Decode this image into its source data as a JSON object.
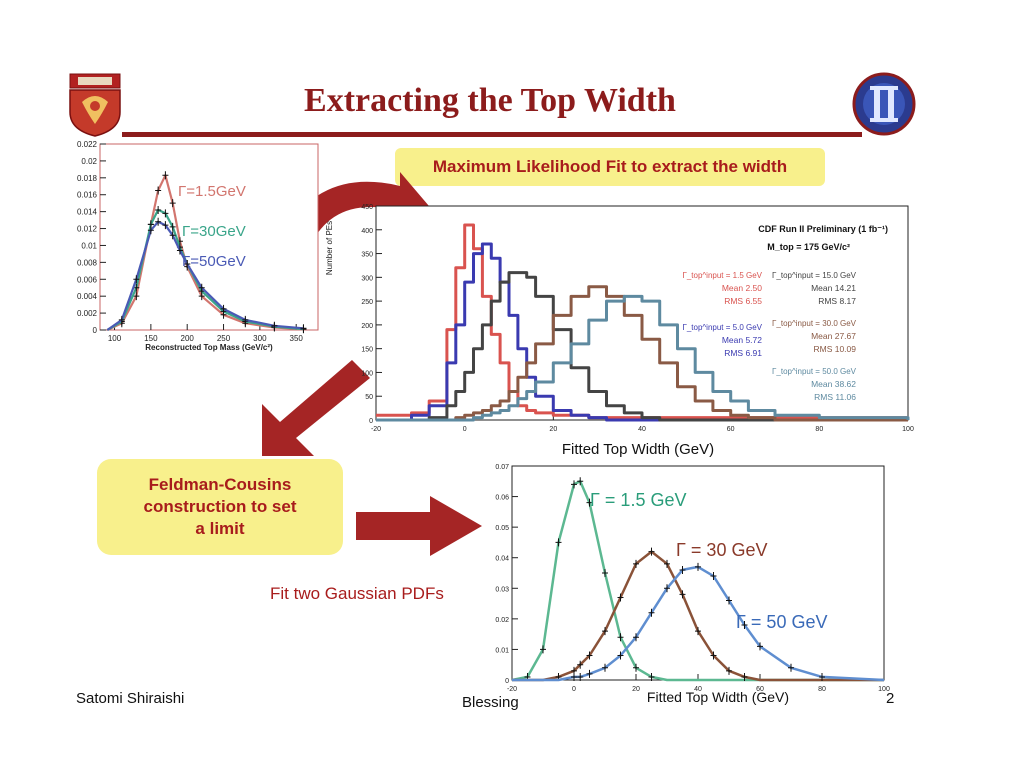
{
  "slide": {
    "title": "Extracting the Top Width",
    "callout_ml": "Maximum Likelihood Fit to extract the width",
    "callout_fc_lines": [
      "Feldman-Cousins",
      "construction to set",
      "a limit"
    ],
    "fit_note": "Fit two Gaussian PDFs",
    "author": "Satomi Shiraishi",
    "event": "Blessing",
    "page": "2",
    "logo_left": "university-crest",
    "logo_right": "cdf-logo",
    "colors": {
      "title": "#8c1c1c",
      "callout_bg": "#f8f08c",
      "callout_text": "#a81c1c",
      "arrow": "#a52525"
    }
  },
  "chart_data": [
    {
      "id": "mass",
      "type": "line",
      "xlabel": "Reconstructed Top Mass (GeV/c²)",
      "xlim": [
        80,
        380
      ],
      "ylim": [
        0,
        0.022
      ],
      "xticks": [
        100,
        150,
        200,
        250,
        300,
        350
      ],
      "yticks": [
        0,
        0.002,
        0.004,
        0.006,
        0.008,
        0.01,
        0.012,
        0.014,
        0.016,
        0.018,
        0.02,
        0.022
      ],
      "ytick_labels": [
        "0",
        "0.002",
        "0.004",
        "0.006",
        "0.008",
        "0.01",
        "0.012",
        "0.014",
        "0.016",
        "0.018",
        "0.02",
        "0.022"
      ],
      "x": [
        90,
        110,
        130,
        150,
        160,
        170,
        180,
        190,
        200,
        220,
        250,
        280,
        320,
        360
      ],
      "series": [
        {
          "name": "Γ=1.5GeV",
          "color": "#d2756e",
          "values": [
            0,
            0.0008,
            0.004,
            0.0125,
            0.0165,
            0.0183,
            0.015,
            0.0105,
            0.0075,
            0.004,
            0.0018,
            0.0008,
            0.0003,
            0.0001
          ]
        },
        {
          "name": "Γ=30GeV",
          "color": "#3aa58a",
          "values": [
            0,
            0.001,
            0.005,
            0.0125,
            0.0142,
            0.0138,
            0.0122,
            0.0098,
            0.0078,
            0.0046,
            0.0022,
            0.001,
            0.0004,
            0.0001
          ]
        },
        {
          "name": "Γ=50GeV",
          "color": "#4a5ab5",
          "values": [
            0,
            0.0012,
            0.006,
            0.0118,
            0.0128,
            0.0124,
            0.0112,
            0.0094,
            0.0078,
            0.005,
            0.0025,
            0.0012,
            0.0005,
            0.0002
          ]
        }
      ]
    },
    {
      "id": "pe",
      "type": "line",
      "title": "CDF Run II Preliminary (1 fb⁻¹)",
      "subtitle": "M_top = 175 GeV/c²",
      "xlabel": "Fitted Top Width (GeV)",
      "ylabel": "Number of PEs",
      "xlim": [
        -20,
        100
      ],
      "ylim": [
        0,
        450
      ],
      "xticks": [
        -20,
        0,
        20,
        40,
        60,
        80,
        100
      ],
      "yticks": [
        0,
        50,
        100,
        150,
        200,
        250,
        300,
        350,
        400,
        450
      ],
      "x": [
        -20,
        -16,
        -12,
        -8,
        -4,
        -2,
        0,
        2,
        4,
        6,
        8,
        10,
        12,
        14,
        16,
        20,
        24,
        28,
        32,
        36,
        40,
        44,
        48,
        52,
        56,
        60,
        64,
        70,
        80,
        100
      ],
      "series": [
        {
          "name": "Γ_top^input = 1.5 GeV",
          "mean": "Mean 2.50",
          "rms": "RMS 6.55",
          "color": "#d9534f",
          "values": [
            10,
            10,
            15,
            40,
            190,
            320,
            410,
            360,
            260,
            180,
            120,
            60,
            30,
            20,
            15,
            10,
            10,
            5,
            5,
            5,
            5,
            5,
            5,
            5,
            5,
            5,
            5,
            5,
            5,
            5
          ]
        },
        {
          "name": "Γ_top^input = 5.0 GeV",
          "mean": "Mean 5.72",
          "rms": "RMS 6.91",
          "color": "#3a3ab0",
          "values": [
            0,
            0,
            10,
            30,
            120,
            200,
            290,
            350,
            370,
            340,
            290,
            220,
            150,
            90,
            50,
            20,
            10,
            5,
            0,
            0,
            0,
            0,
            0,
            0,
            0,
            0,
            0,
            0,
            0,
            0
          ]
        },
        {
          "name": "Γ_top^input = 15.0 GeV",
          "mean": "Mean 14.21",
          "rms": "RMS 8.17",
          "color": "#444444",
          "values": [
            0,
            0,
            0,
            5,
            30,
            60,
            100,
            150,
            200,
            250,
            290,
            310,
            310,
            300,
            260,
            190,
            110,
            60,
            30,
            15,
            5,
            0,
            0,
            0,
            0,
            0,
            0,
            0,
            0,
            0
          ]
        },
        {
          "name": "Γ_top^input = 30.0 GeV",
          "mean": "Mean 27.67",
          "rms": "RMS 10.09",
          "color": "#8a5a45",
          "values": [
            0,
            0,
            0,
            0,
            0,
            5,
            10,
            15,
            20,
            30,
            40,
            60,
            90,
            120,
            160,
            220,
            260,
            280,
            260,
            220,
            170,
            120,
            70,
            40,
            20,
            10,
            5,
            0,
            0,
            0
          ]
        },
        {
          "name": "Γ_top^input = 50.0 GeV",
          "mean": "Mean 38.62",
          "rms": "RMS 11.06",
          "color": "#5e8aa0",
          "values": [
            0,
            0,
            0,
            0,
            0,
            0,
            0,
            5,
            10,
            15,
            20,
            30,
            45,
            60,
            80,
            120,
            160,
            210,
            250,
            260,
            250,
            200,
            150,
            100,
            60,
            40,
            20,
            10,
            5,
            0
          ]
        }
      ]
    },
    {
      "id": "pdf",
      "type": "line",
      "xlabel": "Fitted Top Width (GeV)",
      "xlim": [
        -20,
        100
      ],
      "ylim": [
        0,
        0.07
      ],
      "xticks": [
        -20,
        0,
        20,
        40,
        60,
        80,
        100
      ],
      "yticks": [
        0,
        0.01,
        0.02,
        0.03,
        0.04,
        0.05,
        0.06,
        0.07
      ],
      "ytick_labels": [
        "0",
        "0.01",
        "0.02",
        "0.03",
        "0.04",
        "0.05",
        "0.06",
        "0.07"
      ],
      "x": [
        -20,
        -15,
        -10,
        -5,
        0,
        2,
        5,
        10,
        15,
        20,
        25,
        30,
        35,
        40,
        45,
        50,
        55,
        60,
        70,
        80,
        100
      ],
      "series": [
        {
          "name": "Γ = 1.5 GeV",
          "color": "#5cb891",
          "label_color": "#2a9d7a",
          "values": [
            0,
            0.001,
            0.01,
            0.045,
            0.064,
            0.065,
            0.058,
            0.035,
            0.014,
            0.004,
            0.001,
            0,
            0,
            0,
            0,
            0,
            0,
            0,
            0,
            0,
            0
          ]
        },
        {
          "name": "Γ = 30 GeV",
          "color": "#8a5238",
          "label_color": "#8a3a2a",
          "values": [
            0,
            0,
            0,
            0.001,
            0.003,
            0.005,
            0.008,
            0.016,
            0.027,
            0.038,
            0.042,
            0.038,
            0.028,
            0.016,
            0.008,
            0.003,
            0.001,
            0,
            0,
            0,
            0
          ]
        },
        {
          "name": "Γ = 50 GeV",
          "color": "#5f8ed0",
          "label_color": "#3a6ab8",
          "values": [
            0,
            0,
            0,
            0,
            0.001,
            0.001,
            0.002,
            0.004,
            0.008,
            0.014,
            0.022,
            0.03,
            0.036,
            0.037,
            0.034,
            0.026,
            0.018,
            0.011,
            0.004,
            0.001,
            0
          ]
        }
      ]
    }
  ]
}
